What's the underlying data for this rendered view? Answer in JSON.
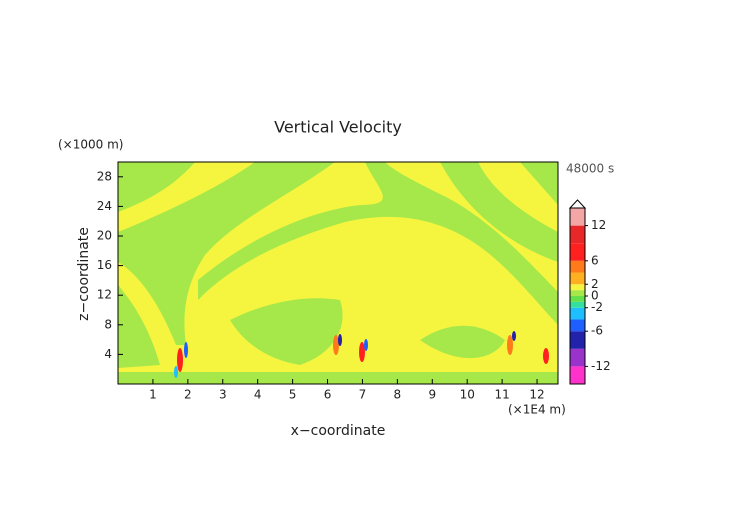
{
  "chart_data": {
    "type": "contour",
    "title": "Vertical Velocity",
    "x_label": "x−coordinate",
    "y_label": "z−coordinate",
    "x_unit": "(×1E4 m)",
    "y_unit": "(×1000 m)",
    "time_label": "48000 s",
    "xlim": [
      0,
      12.6
    ],
    "xticks": [
      1,
      2,
      3,
      4,
      5,
      6,
      7,
      8,
      9,
      10,
      11,
      12
    ],
    "ylim": [
      0,
      30
    ],
    "yticks": [
      4,
      8,
      12,
      16,
      20,
      24,
      28
    ],
    "colorbar": {
      "levels": [
        -15,
        -12,
        -9,
        -6,
        -4,
        -2,
        -1,
        0,
        1,
        2,
        4,
        6,
        9,
        12,
        15
      ],
      "colors": [
        "#ff33cc",
        "#9933cc",
        "#2222aa",
        "#1f5fff",
        "#1fbfff",
        "#33e0a0",
        "#66e04a",
        "#a6e84a",
        "#f5f540",
        "#ffb020",
        "#ff7a1a",
        "#ff2020",
        "#e82828",
        "#f4a6a6"
      ],
      "ticks": [
        12,
        6,
        2,
        0,
        -2,
        -6,
        -12
      ]
    }
  }
}
